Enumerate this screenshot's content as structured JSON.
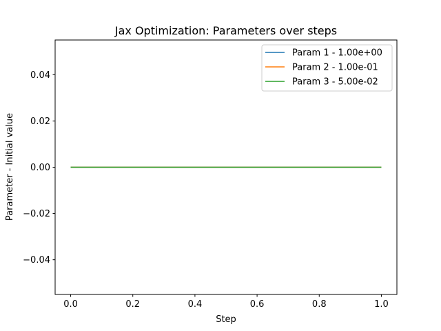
{
  "chart_data": {
    "type": "line",
    "title": "Jax Optimization: Parameters over steps",
    "xlabel": "Step",
    "ylabel": "Parameter - Initial value",
    "xlim": [
      -0.05,
      1.05
    ],
    "ylim": [
      -0.055,
      0.055
    ],
    "xticks": [
      0.0,
      0.2,
      0.4,
      0.6,
      0.8,
      1.0
    ],
    "xtick_labels": [
      "0.0",
      "0.2",
      "0.4",
      "0.6",
      "0.8",
      "1.0"
    ],
    "yticks": [
      -0.04,
      -0.02,
      0.0,
      0.02,
      0.04
    ],
    "ytick_labels": [
      "−0.04",
      "−0.02",
      "0.00",
      "0.02",
      "0.04"
    ],
    "grid": false,
    "legend_position": "top-right",
    "series": [
      {
        "name": "Param 1 - 1.00e+00",
        "color": "#1f77b4",
        "x": [
          0.0,
          1.0
        ],
        "y": [
          0.0,
          0.0
        ]
      },
      {
        "name": "Param 2 - 1.00e-01",
        "color": "#ff7f0e",
        "x": [
          0.0,
          1.0
        ],
        "y": [
          0.0,
          0.0
        ]
      },
      {
        "name": "Param 3 - 5.00e-02",
        "color": "#2ca02c",
        "x": [
          0.0,
          1.0
        ],
        "y": [
          0.0,
          0.0
        ]
      }
    ]
  }
}
